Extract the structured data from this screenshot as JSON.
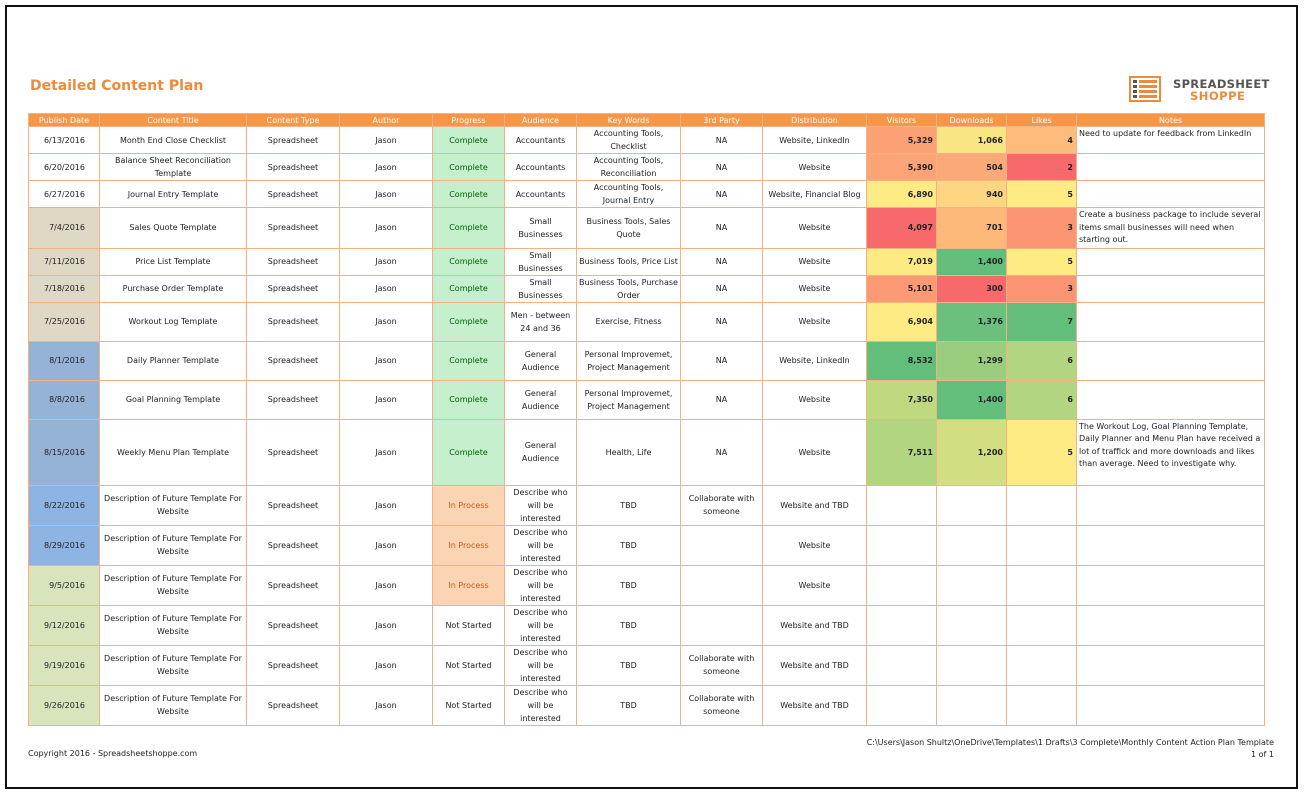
{
  "title": "Detailed Content Plan",
  "logo": {
    "line1": "SPREADSHEET",
    "line2": "SHOPPE"
  },
  "colors": {
    "accent": "#F79646",
    "complete_bg": "#C6EFCE",
    "in_process_bg": "#FBD4B4"
  },
  "columns": [
    "Publish Date",
    "Content Title",
    "Content Type",
    "Author",
    "Progress",
    "Audience",
    "Key Words",
    "3rd Party",
    "Distribution",
    "Visitors",
    "Downloads",
    "Likes",
    "Notes"
  ],
  "rows": [
    {
      "date": "6/13/2016",
      "title": "Month End Close Checklist",
      "type": "Spreadsheet",
      "author": "Jason",
      "progress": "Complete",
      "audience": "Accountants",
      "keywords": "Accounting Tools, Checklist",
      "third_party": "NA",
      "distribution": "Website, LinkedIn",
      "visitors": "5,329",
      "downloads": "1,066",
      "likes": "4",
      "notes": "Need to update for feedback from LinkedIn",
      "date_bg": "#FFFFFF",
      "vis_bg": "#FCA075",
      "dl_bg": "#F8E683",
      "lk_bg": "#FDBC7B"
    },
    {
      "date": "6/20/2016",
      "title": "Balance Sheet Reconciliation Template",
      "type": "Spreadsheet",
      "author": "Jason",
      "progress": "Complete",
      "audience": "Accountants",
      "keywords": "Accounting Tools, Reconciliation",
      "third_party": "NA",
      "distribution": "Website",
      "visitors": "5,390",
      "downloads": "504",
      "likes": "2",
      "notes": "",
      "date_bg": "#FFFFFF",
      "vis_bg": "#FCA377",
      "dl_bg": "#FBA979",
      "lk_bg": "#F8696B"
    },
    {
      "date": "6/27/2016",
      "title": "Journal Entry Template",
      "type": "Spreadsheet",
      "author": "Jason",
      "progress": "Complete",
      "audience": "Accountants",
      "keywords": "Accounting Tools, Journal Entry",
      "third_party": "NA",
      "distribution": "Website, Financial Blog",
      "visitors": "6,890",
      "downloads": "940",
      "likes": "5",
      "notes": "",
      "date_bg": "#FFFFFF",
      "vis_bg": "#FFEB84",
      "dl_bg": "#FED580",
      "lk_bg": "#FFEB84"
    },
    {
      "date": "7/4/2016",
      "title": "Sales Quote Template",
      "type": "Spreadsheet",
      "author": "Jason",
      "progress": "Complete",
      "audience": "Small Businesses",
      "keywords": "Business Tools, Sales Quote",
      "third_party": "NA",
      "distribution": "Website",
      "visitors": "4,097",
      "downloads": "701",
      "likes": "3",
      "notes": "Create a business package to include several items small businesses will need when starting out.",
      "date_bg": "#DDD9C4",
      "vis_bg": "#F8696B",
      "dl_bg": "#FCB97A",
      "lk_bg": "#FA9473"
    },
    {
      "date": "7/11/2016",
      "title": "Price List Template",
      "type": "Spreadsheet",
      "author": "Jason",
      "progress": "Complete",
      "audience": "Small Businesses",
      "keywords": "Business Tools, Price List",
      "third_party": "NA",
      "distribution": "Website",
      "visitors": "7,019",
      "downloads": "1,400",
      "likes": "5",
      "notes": "",
      "date_bg": "#DDD9C4",
      "vis_bg": "#FEEA83",
      "dl_bg": "#63BE7B",
      "lk_bg": "#FFEB84"
    },
    {
      "date": "7/18/2016",
      "title": "Purchase Order Template",
      "type": "Spreadsheet",
      "author": "Jason",
      "progress": "Complete",
      "audience": "Small Businesses",
      "keywords": "Business Tools, Purchase Order",
      "third_party": "NA",
      "distribution": "Website",
      "visitors": "5,101",
      "downloads": "300",
      "likes": "3",
      "notes": "",
      "date_bg": "#DDD9C4",
      "vis_bg": "#FB9A74",
      "dl_bg": "#F8696B",
      "lk_bg": "#FA9473"
    },
    {
      "date": "7/25/2016",
      "title": "Workout Log Template",
      "type": "Spreadsheet",
      "author": "Jason",
      "progress": "Complete",
      "audience": "Men - between 24 and 36",
      "keywords": "Exercise, Fitness",
      "third_party": "NA",
      "distribution": "Website",
      "visitors": "6,904",
      "downloads": "1,376",
      "likes": "7",
      "notes": "",
      "date_bg": "#DDD9C4",
      "vis_bg": "#FFEB84",
      "dl_bg": "#6AC07C",
      "lk_bg": "#63BE7B"
    },
    {
      "date": "8/1/2016",
      "title": "Daily Planner Template",
      "type": "Spreadsheet",
      "author": "Jason",
      "progress": "Complete",
      "audience": "General Audience",
      "keywords": "Personal Improvemet, Project Management",
      "third_party": "NA",
      "distribution": "Website, LinkedIn",
      "visitors": "8,532",
      "downloads": "1,299",
      "likes": "6",
      "notes": "",
      "date_bg": "#95B3D7",
      "vis_bg": "#63BE7B",
      "dl_bg": "#9BCD7F",
      "lk_bg": "#B1D580"
    },
    {
      "date": "8/8/2016",
      "title": "Goal Planning Template",
      "type": "Spreadsheet",
      "author": "Jason",
      "progress": "Complete",
      "audience": "General Audience",
      "keywords": "Personal Improvemet, Project Management",
      "third_party": "NA",
      "distribution": "Website",
      "visitors": "7,350",
      "downloads": "1,400",
      "likes": "6",
      "notes": "",
      "date_bg": "#95B3D7",
      "vis_bg": "#BED97F",
      "dl_bg": "#63BE7B",
      "lk_bg": "#B1D580"
    },
    {
      "date": "8/15/2016",
      "title": "Weekly Menu Plan Template",
      "type": "Spreadsheet",
      "author": "Jason",
      "progress": "Complete",
      "audience": "General Audience",
      "keywords": "Health, Life",
      "third_party": "NA",
      "distribution": "Website",
      "visitors": "7,511",
      "downloads": "1,200",
      "likes": "5",
      "notes": "The Workout Log, Goal Planning Template, Daily Planner and Menu Plan have received a lot of traffick and more downloads and likes than average. Need to investigate why.",
      "date_bg": "#95B3D7",
      "vis_bg": "#B1D580",
      "dl_bg": "#D2DE81",
      "lk_bg": "#FFEB84"
    },
    {
      "date": "8/22/2016",
      "title": "Description of Future Template For Website",
      "type": "Spreadsheet",
      "author": "Jason",
      "progress": "In Process",
      "audience": "Describe who will be interested",
      "keywords": "TBD",
      "third_party": "Collaborate with someone",
      "distribution": "Website and TBD",
      "visitors": "",
      "downloads": "",
      "likes": "",
      "notes": "",
      "date_bg": "#8DB4E2",
      "vis_bg": "#FFFFFF",
      "dl_bg": "#FFFFFF",
      "lk_bg": "#FFFFFF"
    },
    {
      "date": "8/29/2016",
      "title": "Description of Future Template For Website",
      "type": "Spreadsheet",
      "author": "Jason",
      "progress": "In Process",
      "audience": "Describe who will be interested",
      "keywords": "TBD",
      "third_party": "",
      "distribution": "Website",
      "visitors": "",
      "downloads": "",
      "likes": "",
      "notes": "",
      "date_bg": "#8DB4E2",
      "vis_bg": "#FFFFFF",
      "dl_bg": "#FFFFFF",
      "lk_bg": "#FFFFFF"
    },
    {
      "date": "9/5/2016",
      "title": "Description of Future Template For Website",
      "type": "Spreadsheet",
      "author": "Jason",
      "progress": "In Process",
      "audience": "Describe who will be interested",
      "keywords": "TBD",
      "third_party": "",
      "distribution": "Website",
      "visitors": "",
      "downloads": "",
      "likes": "",
      "notes": "",
      "date_bg": "#D8E4BC",
      "vis_bg": "#FFFFFF",
      "dl_bg": "#FFFFFF",
      "lk_bg": "#FFFFFF"
    },
    {
      "date": "9/12/2016",
      "title": "Description of Future Template For Website",
      "type": "Spreadsheet",
      "author": "Jason",
      "progress": "Not Started",
      "audience": "Describe who will be interested",
      "keywords": "TBD",
      "third_party": "",
      "distribution": "Website and TBD",
      "visitors": "",
      "downloads": "",
      "likes": "",
      "notes": "",
      "date_bg": "#D8E4BC",
      "vis_bg": "#FFFFFF",
      "dl_bg": "#FFFFFF",
      "lk_bg": "#FFFFFF"
    },
    {
      "date": "9/19/2016",
      "title": "Description of Future Template For Website",
      "type": "Spreadsheet",
      "author": "Jason",
      "progress": "Not Started",
      "audience": "Describe who will be interested",
      "keywords": "TBD",
      "third_party": "Collaborate with someone",
      "distribution": "Website and TBD",
      "visitors": "",
      "downloads": "",
      "likes": "",
      "notes": "",
      "date_bg": "#D8E4BC",
      "vis_bg": "#FFFFFF",
      "dl_bg": "#FFFFFF",
      "lk_bg": "#FFFFFF"
    },
    {
      "date": "9/26/2016",
      "title": "Description of Future Template For Website",
      "type": "Spreadsheet",
      "author": "Jason",
      "progress": "Not Started",
      "audience": "Describe who will be interested",
      "keywords": "TBD",
      "third_party": "Collaborate with someone",
      "distribution": "Website and TBD",
      "visitors": "",
      "downloads": "",
      "likes": "",
      "notes": "",
      "date_bg": "#D8E4BC",
      "vis_bg": "#FFFFFF",
      "dl_bg": "#FFFFFF",
      "lk_bg": "#FFFFFF"
    }
  ],
  "footer": {
    "copyright": "Copyright 2016 - Spreadsheetshoppe.com",
    "path": "C:\\Users\\Jason Shultz\\OneDrive\\Templates\\1 Drafts\\3 Complete\\Monthly Content Action Plan Template",
    "page": "1 of 1"
  }
}
